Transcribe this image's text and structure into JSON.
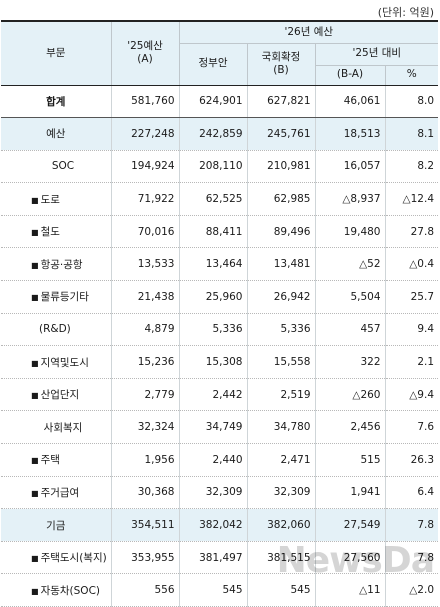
{
  "unit_note": "(단위: 억원)",
  "header": {
    "division": "부문",
    "budget25_line1": "'25예산",
    "budget25_line2": "(A)",
    "budget26": "'26년 예산",
    "gov_proposal": "정부안",
    "final_line1": "국회확정",
    "final_line2": "(B)",
    "vs25": "'25년 대비",
    "diff": "(B-A)",
    "pct": "%"
  },
  "rows": [
    {
      "label": "합계",
      "a": "581,760",
      "gov": "624,901",
      "b": "627,821",
      "diff": "46,061",
      "pct": "8.0"
    },
    {
      "label": "예산",
      "a": "227,248",
      "gov": "242,859",
      "b": "245,761",
      "diff": "18,513",
      "pct": "8.1"
    },
    {
      "label": "SOC",
      "a": "194,924",
      "gov": "208,110",
      "b": "210,981",
      "diff": "16,057",
      "pct": "8.2"
    },
    {
      "label": "도로",
      "a": "71,922",
      "gov": "62,525",
      "b": "62,985",
      "diff": "△8,937",
      "pct": "△12.4"
    },
    {
      "label": "철도",
      "a": "70,016",
      "gov": "88,411",
      "b": "89,496",
      "diff": "19,480",
      "pct": "27.8"
    },
    {
      "label": "항공·공항",
      "a": "13,533",
      "gov": "13,464",
      "b": "13,481",
      "diff": "△52",
      "pct": "△0.4"
    },
    {
      "label": "물류등기타",
      "a": "21,438",
      "gov": "25,960",
      "b": "26,942",
      "diff": "5,504",
      "pct": "25.7"
    },
    {
      "label": "(R&D)",
      "a": "4,879",
      "gov": "5,336",
      "b": "5,336",
      "diff": "457",
      "pct": "9.4"
    },
    {
      "label": "지역및도시",
      "a": "15,236",
      "gov": "15,308",
      "b": "15,558",
      "diff": "322",
      "pct": "2.1"
    },
    {
      "label": "산업단지",
      "a": "2,779",
      "gov": "2,442",
      "b": "2,519",
      "diff": "△260",
      "pct": "△9.4"
    },
    {
      "label": "사회복지",
      "a": "32,324",
      "gov": "34,749",
      "b": "34,780",
      "diff": "2,456",
      "pct": "7.6"
    },
    {
      "label": "주택",
      "a": "1,956",
      "gov": "2,440",
      "b": "2,471",
      "diff": "515",
      "pct": "26.3"
    },
    {
      "label": "주거급여",
      "a": "30,368",
      "gov": "32,309",
      "b": "32,309",
      "diff": "1,941",
      "pct": "6.4"
    },
    {
      "label": "기금",
      "a": "354,511",
      "gov": "382,042",
      "b": "382,060",
      "diff": "27,549",
      "pct": "7.8"
    },
    {
      "label": "주택도시(복지)",
      "a": "353,955",
      "gov": "381,497",
      "b": "381,515",
      "diff": "27,560",
      "pct": "7.8"
    },
    {
      "label": "자동차(SOC)",
      "a": "556",
      "gov": "545",
      "b": "545",
      "diff": "△11",
      "pct": "△2.0"
    }
  ],
  "watermark": "NewsDa"
}
